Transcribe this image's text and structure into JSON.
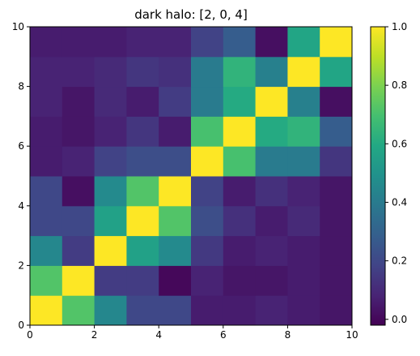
{
  "chart_data": {
    "type": "heatmap",
    "title": "dark halo: [2, 0, 4]",
    "xlabel": "",
    "ylabel": "",
    "xlim": [
      0,
      10
    ],
    "ylim": [
      0,
      10
    ],
    "x_ticks": [
      "0",
      "2",
      "4",
      "6",
      "8",
      "10"
    ],
    "y_ticks": [
      "0",
      "2",
      "4",
      "6",
      "8",
      "10"
    ],
    "colormap": "viridis",
    "colorbar": {
      "range": [
        -0.02,
        1.0
      ],
      "ticks": [
        "0.0",
        "0.2",
        "0.4",
        "0.6",
        "0.8",
        "1.0"
      ]
    },
    "grid": false,
    "row_order": "bottom-to-top",
    "matrix": [
      [
        1.0,
        0.72,
        0.45,
        0.2,
        0.2,
        0.06,
        0.06,
        0.08,
        0.06,
        0.04
      ],
      [
        0.72,
        1.0,
        0.16,
        0.16,
        0.0,
        0.08,
        0.04,
        0.04,
        0.06,
        0.04
      ],
      [
        0.45,
        0.16,
        1.0,
        0.56,
        0.46,
        0.15,
        0.06,
        0.08,
        0.06,
        0.04
      ],
      [
        0.2,
        0.2,
        0.56,
        1.0,
        0.72,
        0.22,
        0.12,
        0.06,
        0.1,
        0.04
      ],
      [
        0.2,
        0.02,
        0.46,
        0.72,
        1.0,
        0.18,
        0.06,
        0.12,
        0.08,
        0.04
      ],
      [
        0.06,
        0.08,
        0.18,
        0.22,
        0.22,
        1.0,
        0.7,
        0.4,
        0.4,
        0.14
      ],
      [
        0.06,
        0.04,
        0.08,
        0.14,
        0.06,
        0.7,
        1.0,
        0.6,
        0.64,
        0.28
      ],
      [
        0.08,
        0.04,
        0.1,
        0.06,
        0.16,
        0.4,
        0.6,
        1.0,
        0.42,
        0.02
      ],
      [
        0.08,
        0.08,
        0.1,
        0.14,
        0.12,
        0.4,
        0.64,
        0.42,
        1.0,
        0.58
      ],
      [
        0.06,
        0.06,
        0.06,
        0.08,
        0.08,
        0.18,
        0.28,
        0.02,
        0.58,
        1.0
      ]
    ]
  }
}
